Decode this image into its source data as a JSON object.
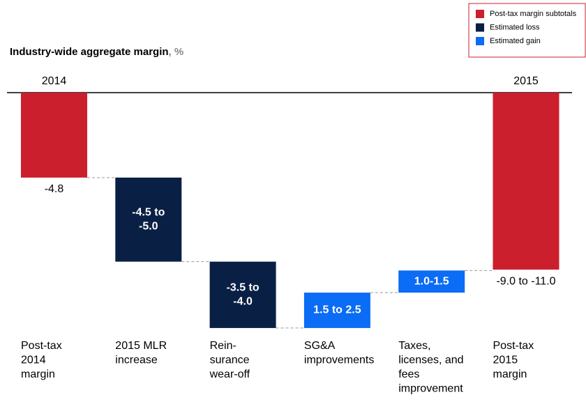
{
  "chart_data": {
    "type": "waterfall",
    "title": "Industry-wide  aggregate margin",
    "title_unit": ", %",
    "top_labels": [
      "2014",
      null,
      null,
      null,
      null,
      "2015"
    ],
    "categories": [
      [
        "Post-tax",
        "2014",
        "margin"
      ],
      [
        "2015 MLR",
        "increase"
      ],
      [
        "Rein-",
        "surance",
        "wear-off"
      ],
      [
        "SG&A",
        "improvements"
      ],
      [
        "Taxes,",
        "licenses, and",
        "fees",
        "improvement"
      ],
      [
        "Post-tax",
        "2015",
        "margin"
      ]
    ],
    "series": [
      {
        "name": "Post-tax margin subtotals",
        "color": "#cc1f2d",
        "values": [
          -4.8,
          null,
          null,
          null,
          null,
          -10
        ],
        "value_labels": [
          "-4.8",
          null,
          null,
          null,
          null,
          "-9.0 to -11.0"
        ]
      },
      {
        "name": "Estimated loss",
        "color": "#0a1f44",
        "values": [
          null,
          -4.75,
          -3.75,
          null,
          null,
          null
        ],
        "value_labels": [
          null,
          "-4.5 to -5.0",
          "-3.5 to -4.0",
          null,
          null,
          null
        ]
      },
      {
        "name": "Estimated gain",
        "color": "#0b6cf5",
        "values": [
          null,
          null,
          null,
          2,
          1.25,
          null
        ],
        "value_labels": [
          null,
          null,
          null,
          "1.5 to 2.5",
          "1.0-1.5",
          null
        ]
      }
    ],
    "ylim": [
      -13.5,
      0
    ],
    "legend": "top-right"
  }
}
